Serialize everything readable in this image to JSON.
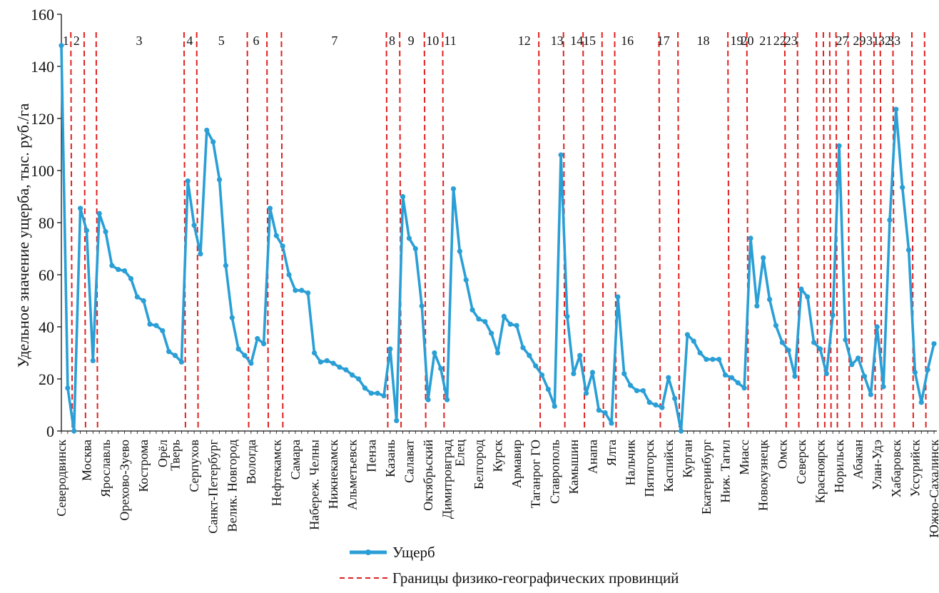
{
  "chart_data": {
    "type": "line",
    "ylabel": "Удельное значение ущерба, тыс. руб./га",
    "ylim": [
      0,
      160
    ],
    "yticks": [
      0,
      20,
      40,
      60,
      80,
      100,
      120,
      140,
      160
    ],
    "grid": false,
    "legend_position": "bottom",
    "series": [
      {
        "name": "Ущерб",
        "color": "#2a9fd6",
        "values": [
          148,
          16.5,
          0,
          85.5,
          77,
          27,
          83.5,
          76.5,
          63.5,
          62,
          61.5,
          58.5,
          51.5,
          50,
          41,
          40.5,
          38.5,
          30.5,
          29,
          26.5,
          96,
          79,
          68,
          115.5,
          111,
          96.5,
          63.5,
          43.5,
          31.5,
          29,
          26,
          35.5,
          33.5,
          85.5,
          75,
          71,
          60,
          54,
          54,
          53,
          30,
          26.5,
          27,
          26,
          24.5,
          23.5,
          21.5,
          20,
          16.5,
          14.5,
          14.5,
          13.5,
          31.5,
          4,
          90,
          74,
          70,
          48,
          12,
          30,
          24,
          12,
          93,
          69,
          58,
          46.5,
          43,
          42,
          37.5,
          30,
          44,
          41,
          40.5,
          32,
          29,
          25,
          21.5,
          16,
          9.5,
          106,
          44,
          22,
          29,
          14.5,
          22.5,
          8,
          7,
          3,
          51.5,
          22,
          17.5,
          15.5,
          15.5,
          11,
          10,
          9,
          20.5,
          12.5,
          0,
          37,
          34.5,
          30,
          27.5,
          27.5,
          27.5,
          21.5,
          20.5,
          18.5,
          16.5,
          74,
          48,
          66.5,
          50.5,
          40.5,
          34,
          31,
          21,
          54.5,
          51.5,
          34,
          31.5,
          22,
          44.5,
          109.5,
          35,
          25.5,
          28,
          21,
          14,
          40,
          17,
          81,
          123.5,
          93.5,
          69.5,
          22.5,
          11,
          23.5,
          33.5
        ]
      }
    ],
    "city_labels": [
      {
        "name": "Северодвинск",
        "i": 0
      },
      {
        "name": "Москва",
        "i": 4
      },
      {
        "name": "Ярославль",
        "i": 7
      },
      {
        "name": "Орехово-Зуево",
        "i": 10
      },
      {
        "name": "Кострома",
        "i": 13
      },
      {
        "name": "Орёл",
        "i": 16
      },
      {
        "name": "Тверь",
        "i": 18
      },
      {
        "name": "Серпухов",
        "i": 21
      },
      {
        "name": "Санкт-Петербург",
        "i": 24
      },
      {
        "name": "Велик. Новгород",
        "i": 27
      },
      {
        "name": "Вологда",
        "i": 30
      },
      {
        "name": "Нефтекамск",
        "i": 34
      },
      {
        "name": "Самара",
        "i": 37
      },
      {
        "name": "Набереж. Челны",
        "i": 40
      },
      {
        "name": "Нижнекамск",
        "i": 43
      },
      {
        "name": "Альметьевск",
        "i": 46
      },
      {
        "name": "Пенза",
        "i": 49
      },
      {
        "name": "Казань",
        "i": 52
      },
      {
        "name": "Салават",
        "i": 55
      },
      {
        "name": "Октябрьский",
        "i": 58
      },
      {
        "name": "Димитровград",
        "i": 61
      },
      {
        "name": "Елец",
        "i": 63
      },
      {
        "name": "Белгород",
        "i": 66
      },
      {
        "name": "Курск",
        "i": 69
      },
      {
        "name": "Армавир",
        "i": 72
      },
      {
        "name": "Таганрог ГО",
        "i": 75
      },
      {
        "name": "Ставрополь",
        "i": 78
      },
      {
        "name": "Камышин",
        "i": 81
      },
      {
        "name": "Анапа",
        "i": 84
      },
      {
        "name": "Ялта",
        "i": 87
      },
      {
        "name": "Нальчик",
        "i": 90
      },
      {
        "name": "Пятигорск",
        "i": 93
      },
      {
        "name": "Каспийск",
        "i": 96
      },
      {
        "name": "Курган",
        "i": 99
      },
      {
        "name": "Екатеринбург",
        "i": 102
      },
      {
        "name": "Ниж. Тагил",
        "i": 105
      },
      {
        "name": "Миасс",
        "i": 108
      },
      {
        "name": "Новокузнецк",
        "i": 111
      },
      {
        "name": "Омск",
        "i": 114
      },
      {
        "name": "Северск",
        "i": 117
      },
      {
        "name": "Красноярск",
        "i": 120
      },
      {
        "name": "Норильск",
        "i": 123
      },
      {
        "name": "Абакан",
        "i": 126
      },
      {
        "name": "Улан-Удэ",
        "i": 129
      },
      {
        "name": "Хабаровск",
        "i": 132
      },
      {
        "name": "Уссурийск",
        "i": 135
      },
      {
        "name": "Южно-Сахалинск",
        "i": 138
      }
    ],
    "province_boundaries": [
      1.5,
      3.6,
      5.5,
      19.4,
      21.4,
      29.4,
      32.5,
      34.8,
      51.4,
      53.5,
      57.4,
      60.3,
      75.5,
      79.4,
      82.5,
      85.5,
      87.5,
      94.5,
      97.5,
      105.4,
      108.4,
      114.4,
      116.4,
      119.4,
      120.5,
      121.5,
      122.5,
      124.4,
      126.4,
      128.5,
      129.5,
      131.5,
      134.5,
      136.5
    ],
    "province_labels": [
      {
        "label": "1",
        "x": 0.7
      },
      {
        "label": "2",
        "x": 2.4
      },
      {
        "label": "3",
        "x": 12.3
      },
      {
        "label": "4",
        "x": 20.3
      },
      {
        "label": "5",
        "x": 25.3
      },
      {
        "label": "6",
        "x": 30.8
      },
      {
        "label": "7",
        "x": 43.2
      },
      {
        "label": "8",
        "x": 52.3
      },
      {
        "label": "9",
        "x": 55.3
      },
      {
        "label": "10",
        "x": 58.7
      },
      {
        "label": "11",
        "x": 61.5
      },
      {
        "label": "12",
        "x": 73.2
      },
      {
        "label": "13",
        "x": 78.4
      },
      {
        "label": "14",
        "x": 81.5
      },
      {
        "label": "15",
        "x": 83.5
      },
      {
        "label": "16",
        "x": 89.5
      },
      {
        "label": "17",
        "x": 95.2
      },
      {
        "label": "18",
        "x": 101.5
      },
      {
        "label": "19",
        "x": 106.8
      },
      {
        "label": "20",
        "x": 108.5
      },
      {
        "label": "21",
        "x": 111.4
      },
      {
        "label": "22",
        "x": 113.6
      },
      {
        "label": "23",
        "x": 115.4
      },
      {
        "label": "27",
        "x": 123.5
      },
      {
        "label": "29",
        "x": 126.2
      },
      {
        "label": "31",
        "x": 128.3
      },
      {
        "label": "32",
        "x": 130.2
      },
      {
        "label": "33",
        "x": 131.7
      }
    ],
    "legend": [
      {
        "label": "Ущерб",
        "style": "line-with-marker",
        "color": "#2a9fd6"
      },
      {
        "label": "Границы физико-географических провинций",
        "style": "dashed",
        "color": "#e02020"
      }
    ]
  }
}
